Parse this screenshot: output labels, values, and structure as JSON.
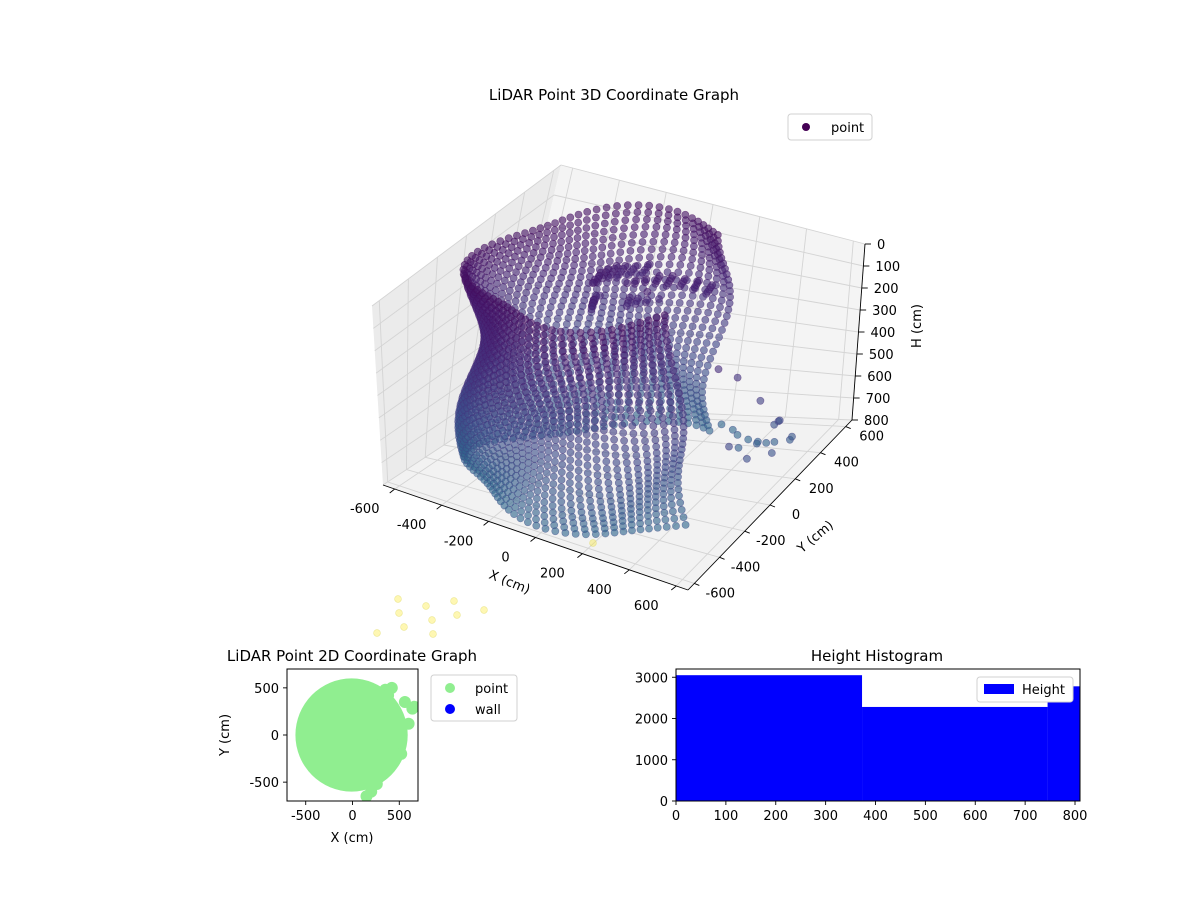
{
  "chart_data": [
    {
      "type": "scatter",
      "projection": "3d",
      "title": "LiDAR Point 3D Coordinate Graph",
      "xlabel": "X (cm)",
      "ylabel": "Y (cm)",
      "zlabel": "H (cm)",
      "xlim": [
        -650,
        650
      ],
      "ylim": [
        -650,
        650
      ],
      "zlim": [
        800,
        0
      ],
      "x_ticks": [
        -600,
        -400,
        -200,
        0,
        200,
        400,
        600
      ],
      "y_ticks": [
        -600,
        -400,
        -200,
        0,
        200,
        400,
        600
      ],
      "z_ticks": [
        0,
        100,
        200,
        300,
        400,
        500,
        600,
        700,
        800
      ],
      "grid": true,
      "legend_position": "top-right",
      "colormap": "viridis",
      "series": [
        {
          "name": "point",
          "color": "#440154",
          "shape": "partial cylindrical wall",
          "radius": 560,
          "center": [
            0,
            0
          ],
          "angle_range_deg": [
            70,
            330
          ],
          "height_range": [
            0,
            800
          ],
          "outliers": [
            [
              520,
              -80,
              250
            ],
            [
              560,
              -20,
              300
            ],
            [
              600,
              60,
              420
            ],
            [
              640,
              120,
              520
            ],
            [
              600,
              180,
              560
            ],
            [
              560,
              220,
              600
            ],
            [
              620,
              240,
              650
            ],
            [
              580,
              300,
              700
            ],
            [
              500,
              340,
              740
            ],
            [
              450,
              380,
              770
            ],
            [
              400,
              420,
              790
            ],
            [
              350,
              450,
              800
            ],
            [
              300,
              470,
              795
            ],
            [
              260,
              520,
              800
            ],
            [
              200,
              560,
              800
            ],
            [
              620,
              -200,
              480
            ],
            [
              640,
              -120,
              560
            ],
            [
              660,
              20,
              600
            ],
            [
              480,
              240,
              700
            ],
            [
              380,
              300,
              760
            ]
          ]
        }
      ]
    },
    {
      "type": "scatter",
      "title": "LiDAR Point 2D Coordinate Graph",
      "xlabel": "X (cm)",
      "ylabel": "Y (cm)",
      "xlim": [
        -700,
        700
      ],
      "ylim": [
        -700,
        700
      ],
      "x_ticks": [
        -500,
        0,
        500
      ],
      "y_ticks": [
        -500,
        0,
        500
      ],
      "legend_position": "outside-right",
      "series": [
        {
          "name": "point",
          "color": "#90ee90",
          "fill_radius": 600,
          "blobs": [
            [
              350,
              480
            ],
            [
              420,
              500
            ],
            [
              380,
              420
            ],
            [
              400,
              300
            ],
            [
              440,
              120
            ],
            [
              520,
              110
            ],
            [
              600,
              120
            ],
            [
              640,
              280
            ],
            [
              660,
              300
            ],
            [
              560,
              350
            ],
            [
              520,
              -200
            ],
            [
              380,
              -300
            ],
            [
              320,
              -420
            ],
            [
              260,
              -520
            ],
            [
              200,
              -600
            ],
            [
              150,
              -650
            ],
            [
              300,
              -100
            ],
            [
              340,
              60
            ],
            [
              360,
              200
            ]
          ]
        },
        {
          "name": "wall",
          "color": "#0000ff",
          "points": []
        }
      ]
    },
    {
      "type": "bar",
      "title": "Height Histogram",
      "xlim": [
        0,
        810
      ],
      "ylim": [
        0,
        3200
      ],
      "x_ticks": [
        0,
        100,
        200,
        300,
        400,
        500,
        600,
        700,
        800
      ],
      "y_ticks": [
        0,
        1000,
        2000,
        3000
      ],
      "legend_position": "top-right",
      "series": [
        {
          "name": "Height",
          "color": "#0000ff",
          "bins": [
            {
              "x0": 0,
              "x1": 373,
              "count": 3050
            },
            {
              "x0": 373,
              "x1": 745,
              "count": 2280
            },
            {
              "x0": 745,
              "x1": 810,
              "count": 2780
            }
          ]
        }
      ]
    }
  ]
}
